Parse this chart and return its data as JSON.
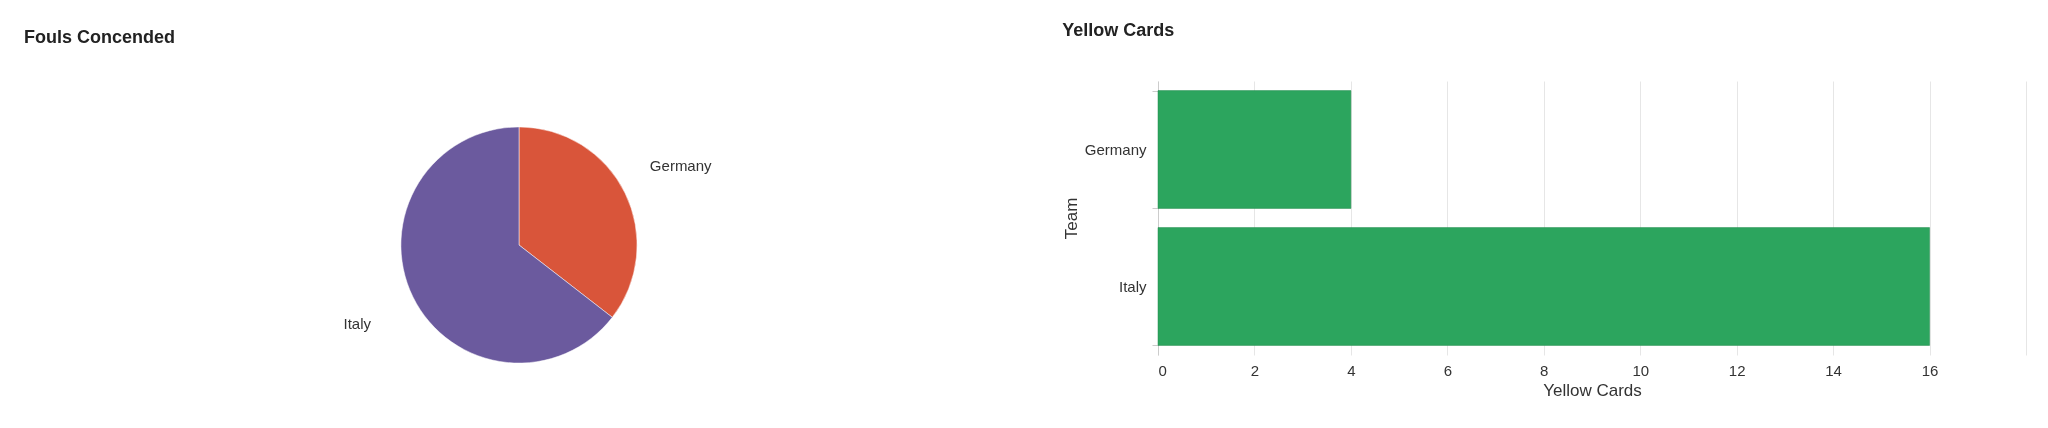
{
  "chart_data": [
    {
      "type": "pie",
      "title": "Fouls Concended",
      "categories": [
        "Germany",
        "Italy"
      ],
      "values": [
        35.5,
        64.5
      ],
      "colors": [
        "#d9553a",
        "#6b5a9e"
      ]
    },
    {
      "type": "bar",
      "title": "Yellow Cards",
      "orientation": "horizontal",
      "categories": [
        "Germany",
        "Italy"
      ],
      "values": [
        4,
        16
      ],
      "color": "#2ca55e",
      "xlim": [
        0,
        18
      ],
      "xticks": [
        0,
        2,
        4,
        6,
        8,
        10,
        12,
        14,
        16,
        {
          "value": 18,
          "label": null
        }
      ],
      "xlabel": "Yellow Cards",
      "ylabel": "Team",
      "grid": "x"
    }
  ]
}
